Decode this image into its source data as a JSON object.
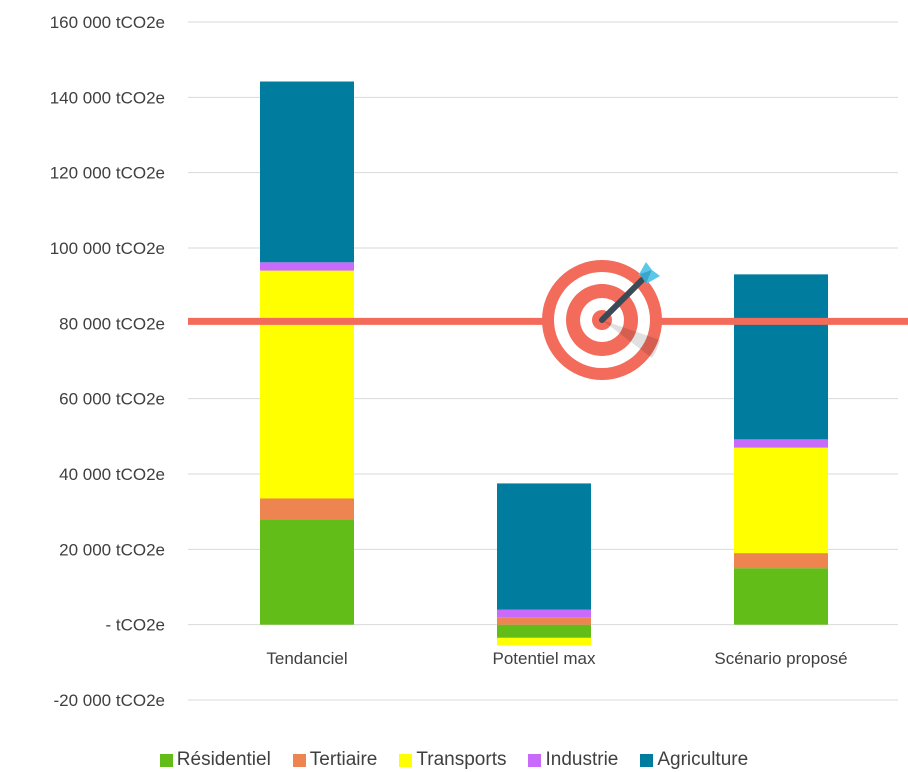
{
  "chart_data": {
    "type": "bar",
    "stacked": true,
    "categories": [
      "Tendanciel",
      "Potentiel max",
      "Scénario proposé"
    ],
    "series": [
      {
        "name": "Résidentiel",
        "color": "#62BD19",
        "values": [
          28000,
          -3500,
          15000
        ]
      },
      {
        "name": "Tertiaire",
        "color": "#EE8450",
        "values": [
          5500,
          2000,
          4000
        ]
      },
      {
        "name": "Transports",
        "color": "#FFFF00",
        "values": [
          60500,
          -2000,
          28000
        ]
      },
      {
        "name": "Industrie",
        "color": "#C86BFA",
        "values": [
          2200,
          2000,
          2200
        ]
      },
      {
        "name": "Agriculture",
        "color": "#007C9E",
        "values": [
          48000,
          33500,
          43800
        ]
      }
    ],
    "ylim": [
      -20000,
      160000
    ],
    "yticks": [
      {
        "value": 160000,
        "label": "160 000   tCO2e"
      },
      {
        "value": 140000,
        "label": "140 000   tCO2e"
      },
      {
        "value": 120000,
        "label": "120 000   tCO2e"
      },
      {
        "value": 100000,
        "label": "100 000   tCO2e"
      },
      {
        "value": 80000,
        "label": "80 000   tCO2e"
      },
      {
        "value": 60000,
        "label": "60 000   tCO2e"
      },
      {
        "value": 40000,
        "label": "40 000   tCO2e"
      },
      {
        "value": 20000,
        "label": "20 000   tCO2e"
      },
      {
        "value": 0,
        "label": "-     tCO2e"
      },
      {
        "value": -20000,
        "label": "-20 000   tCO2e"
      }
    ],
    "target_line": {
      "value": 80000,
      "color": "#F26B5B"
    },
    "grid": true,
    "legend_position": "bottom"
  }
}
